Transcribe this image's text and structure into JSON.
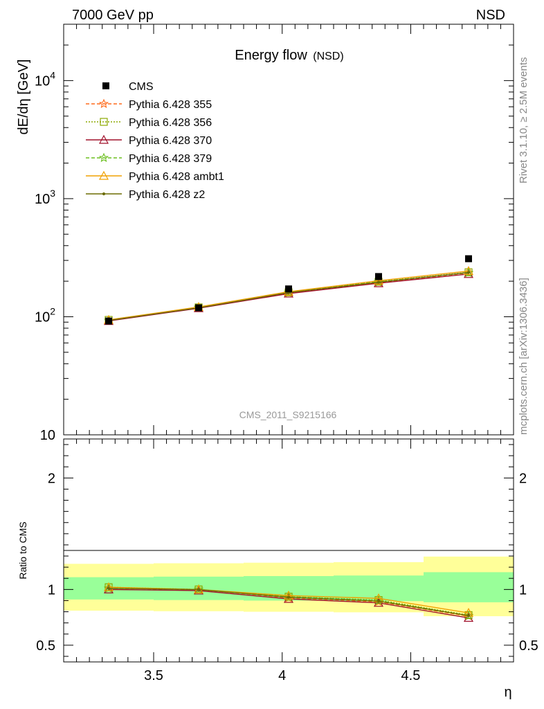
{
  "header": {
    "left": "7000 GeV pp",
    "right": "NSD"
  },
  "side_labels": {
    "rivet": "Rivet 3.1.10, ≥ 2.5M events",
    "mcplots": "mcplots.cern.ch [arXiv:1306.3436]"
  },
  "watermark": "CMS_2011_S9215166",
  "chart_data": [
    {
      "type": "line",
      "title": "Energy flow",
      "title_suffix": "(NSD)",
      "ylabel": "dE/dη [GeV]",
      "yscale": "log",
      "xlim": [
        3.15,
        4.9
      ],
      "ylim": [
        10,
        30000
      ],
      "y_ticks": [
        {
          "value": 10,
          "label": "10"
        },
        {
          "value": 100,
          "label": "10",
          "exp": "2"
        },
        {
          "value": 1000,
          "label": "10",
          "exp": "3"
        },
        {
          "value": 10000,
          "label": "10",
          "exp": "4"
        }
      ],
      "x": [
        3.325,
        3.675,
        4.025,
        4.375,
        4.725
      ],
      "data": {
        "name": "CMS",
        "values": [
          92,
          119,
          172,
          219,
          310
        ]
      },
      "series": [
        {
          "name": "Pythia 6.428 355",
          "color": "#ff6a1a",
          "dash": "5,3",
          "marker": "star",
          "values": [
            93,
            119,
            159,
            195,
            235
          ]
        },
        {
          "name": "Pythia 6.428 356",
          "color": "#8ba800",
          "dash": "2,2",
          "marker": "square",
          "values": [
            94,
            120,
            161,
            198,
            238
          ]
        },
        {
          "name": "Pythia 6.428 370",
          "color": "#a0102a",
          "dash": "",
          "marker": "triangle",
          "values": [
            92,
            118,
            157,
            192,
            230
          ]
        },
        {
          "name": "Pythia 6.428 379",
          "color": "#6bbf1f",
          "dash": "5,3",
          "marker": "star",
          "values": [
            93,
            120,
            161,
            198,
            236
          ]
        },
        {
          "name": "Pythia 6.428 ambt1",
          "color": "#f0a000",
          "dash": "",
          "marker": "triangle",
          "values": [
            94,
            121,
            163,
            202,
            244
          ]
        },
        {
          "name": "Pythia 6.428 z2",
          "color": "#6b6b00",
          "dash": "",
          "marker": "dot",
          "values": [
            93,
            119,
            160,
            196,
            237
          ]
        }
      ]
    },
    {
      "type": "line",
      "ylabel": "Ratio to CMS",
      "xlabel": "η",
      "xlim": [
        3.15,
        4.9
      ],
      "ylim": [
        0.35,
        2.35
      ],
      "y_ticks": [
        {
          "value": 0.5,
          "label": "0.5"
        },
        {
          "value": 1,
          "label": "1"
        },
        {
          "value": 2,
          "label": "2"
        }
      ],
      "x_ticks": [
        {
          "value": 3.5,
          "label": "3.5"
        },
        {
          "value": 4,
          "label": "4"
        },
        {
          "value": 4.5,
          "label": "4.5"
        }
      ],
      "bins": [
        {
          "lo": 3.15,
          "hi": 3.5,
          "inner": [
            0.91,
            1.11
          ],
          "outer": [
            0.81,
            1.23
          ]
        },
        {
          "lo": 3.5,
          "hi": 3.85,
          "inner": [
            0.905,
            1.115
          ],
          "outer": [
            0.805,
            1.235
          ]
        },
        {
          "lo": 3.85,
          "hi": 4.2,
          "inner": [
            0.9,
            1.12
          ],
          "outer": [
            0.8,
            1.24
          ]
        },
        {
          "lo": 4.2,
          "hi": 4.55,
          "inner": [
            0.895,
            1.125
          ],
          "outer": [
            0.795,
            1.245
          ]
        },
        {
          "lo": 4.55,
          "hi": 4.9,
          "inner": [
            0.885,
            1.155
          ],
          "outer": [
            0.76,
            1.295
          ]
        }
      ],
      "series": [
        {
          "name": "Pythia 6.428 355",
          "values": [
            1.01,
            1.0,
            0.925,
            0.89,
            0.76
          ]
        },
        {
          "name": "Pythia 6.428 356",
          "values": [
            1.02,
            1.0,
            0.935,
            0.905,
            0.77
          ]
        },
        {
          "name": "Pythia 6.428 370",
          "values": [
            1.0,
            0.99,
            0.915,
            0.88,
            0.745
          ]
        },
        {
          "name": "Pythia 6.428 379",
          "values": [
            1.01,
            1.0,
            0.935,
            0.9,
            0.765
          ]
        },
        {
          "name": "Pythia 6.428 ambt1",
          "values": [
            1.02,
            1.0,
            0.945,
            0.92,
            0.79
          ]
        },
        {
          "name": "Pythia 6.428 z2",
          "values": [
            1.01,
            1.0,
            0.93,
            0.895,
            0.765
          ]
        }
      ]
    }
  ]
}
